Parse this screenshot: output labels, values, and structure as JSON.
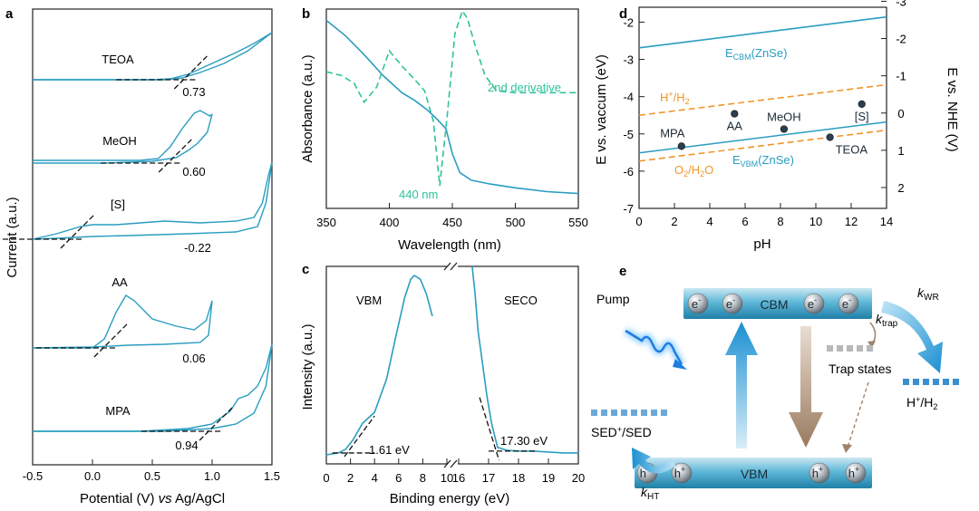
{
  "colors": {
    "curve": "#2a9dc0",
    "derivative": "#2fc39a",
    "energy_lines": "#2a9dc0",
    "redox_dashed": "#f0962a",
    "point": "#2b3f4f",
    "electron_arrow": "#1b8fd1",
    "trap_arrow": "#a0826a"
  },
  "chart_data": [
    {
      "panel": "a",
      "type": "line",
      "title": "",
      "xlabel": "Potential (V) vs Ag/AgCl",
      "ylabel": "Current (a.u.)",
      "xlim": [
        -0.5,
        1.5
      ],
      "xticks": [
        "-0.5",
        "0.0",
        "0.5",
        "1.0",
        "1.5"
      ],
      "series": [
        {
          "name": "TEOA",
          "onset_label": "0.73",
          "onset": 0.73
        },
        {
          "name": "MeOH",
          "onset_label": "0.60",
          "onset": 0.6
        },
        {
          "name": "[S]",
          "onset_label": "-0.22",
          "onset": -0.22
        },
        {
          "name": "AA",
          "onset_label": "0.06",
          "onset": 0.06
        },
        {
          "name": "MPA",
          "onset_label": "0.94",
          "onset": 0.94
        }
      ]
    },
    {
      "panel": "b",
      "type": "line",
      "xlabel": "Wavelength (nm)",
      "ylabel": "Absorbance (a.u.)",
      "xlim": [
        350,
        550
      ],
      "xticks": [
        "350",
        "400",
        "450",
        "500",
        "550"
      ],
      "series": [
        {
          "name": "Absorbance",
          "x": [
            350,
            365,
            380,
            395,
            410,
            420,
            430,
            438,
            445,
            450,
            456,
            465,
            480,
            500,
            525,
            550
          ],
          "y": [
            0.95,
            0.87,
            0.77,
            0.66,
            0.57,
            0.53,
            0.48,
            0.43,
            0.38,
            0.25,
            0.15,
            0.11,
            0.09,
            0.07,
            0.05,
            0.04
          ]
        },
        {
          "name": "2nd derivative",
          "x": [
            350,
            362,
            372,
            380,
            390,
            400,
            410,
            420,
            428,
            435,
            440,
            446,
            452,
            458,
            462,
            468,
            476,
            485,
            500,
            525,
            550
          ],
          "y": [
            0.68,
            0.66,
            0.62,
            0.52,
            0.6,
            0.79,
            0.71,
            0.64,
            0.58,
            0.42,
            0.08,
            0.45,
            0.88,
            1.0,
            0.96,
            0.82,
            0.66,
            0.58,
            0.57,
            0.57,
            0.57
          ]
        }
      ],
      "annotations": [
        "2nd derivative",
        "440 nm"
      ]
    },
    {
      "panel": "c",
      "type": "line",
      "xlabel": "Binding energy (eV)",
      "ylabel": "Intensity (a.u.)",
      "segments": [
        {
          "range": [
            0,
            10
          ],
          "label": "VBM",
          "value_label": "1.61 eV",
          "x": [
            0,
            1.0,
            1.61,
            2.2,
            3.0,
            4.0,
            5.0,
            5.8,
            6.5,
            7.0,
            7.3,
            7.8,
            8.3,
            8.8
          ],
          "y": [
            0.01,
            0.02,
            0.04,
            0.09,
            0.18,
            0.24,
            0.42,
            0.66,
            0.86,
            0.96,
            0.98,
            0.96,
            0.88,
            0.76
          ]
        },
        {
          "range": [
            16,
            20
          ],
          "label": "SECO",
          "value_label": "17.30 eV",
          "x": [
            16.45,
            16.55,
            16.65,
            16.8,
            16.95,
            17.1,
            17.3,
            17.6,
            18.0,
            18.5,
            19.0,
            19.5,
            20.0
          ],
          "y": [
            1.05,
            0.88,
            0.68,
            0.5,
            0.32,
            0.18,
            0.05,
            0.035,
            0.03,
            0.03,
            0.025,
            0.02,
            0.02
          ]
        }
      ],
      "xticks": [
        "0",
        "2",
        "4",
        "6",
        "8",
        "10",
        "16",
        "17",
        "18",
        "19",
        "20"
      ]
    },
    {
      "panel": "d",
      "type": "scatter",
      "xlabel": "pH",
      "ylabel": "E vs. vaccum (eV)",
      "y2label": "E vs. NHE (V)",
      "xlim": [
        0,
        14
      ],
      "ylim": [
        -7,
        -1.6
      ],
      "xticks": [
        "0",
        "2",
        "4",
        "6",
        "8",
        "10",
        "12",
        "14"
      ],
      "yticks": [
        "-7",
        "-6",
        "-5",
        "-4",
        "-3",
        "-2"
      ],
      "y2ticks": [
        "-3",
        "-2",
        "-1",
        "0",
        "1",
        "2"
      ],
      "lines": [
        {
          "name": "ECBM(ZnSe)",
          "x": [
            0,
            14
          ],
          "y": [
            -2.69,
            -1.86
          ],
          "style": "solid"
        },
        {
          "name": "EVBM(ZnSe)",
          "x": [
            0,
            14
          ],
          "y": [
            -5.51,
            -4.68
          ],
          "style": "solid"
        },
        {
          "name": "H+/H2",
          "x": [
            0,
            14
          ],
          "y": [
            -4.5,
            -3.68
          ],
          "style": "dashed"
        },
        {
          "name": "O2/H2O",
          "x": [
            0,
            14
          ],
          "y": [
            -5.73,
            -4.9
          ],
          "style": "dashed"
        }
      ],
      "points": [
        {
          "name": "MPA",
          "x": 2.4,
          "y": -5.33
        },
        {
          "name": "AA",
          "x": 5.4,
          "y": -4.46
        },
        {
          "name": "MeOH",
          "x": 8.2,
          "y": -4.87
        },
        {
          "name": "TEOA",
          "x": 10.8,
          "y": -5.09
        },
        {
          "name": "[S]",
          "x": 12.6,
          "y": -4.2
        }
      ]
    }
  ],
  "panel_labels": {
    "a": "a",
    "b": "b",
    "c": "c",
    "d": "d",
    "e": "e"
  },
  "diagram_e": {
    "cbm_label": "CBM",
    "vbm_label": "VBM",
    "electron": "e",
    "electron_sup": "-",
    "hole": "h",
    "hole_sup": "+",
    "pump_label": "Pump",
    "trap_label": "Trap states",
    "h2_label": "H",
    "h2_sup": "+",
    "h2_rest": "/H",
    "h2_sub": "2",
    "sed_label_a": "SED",
    "sed_sup": "+",
    "sed_label_b": "/SED",
    "k": "k",
    "kwr_sub": "WR",
    "ktrap_sub": "trap",
    "kht_sub": "HT"
  }
}
